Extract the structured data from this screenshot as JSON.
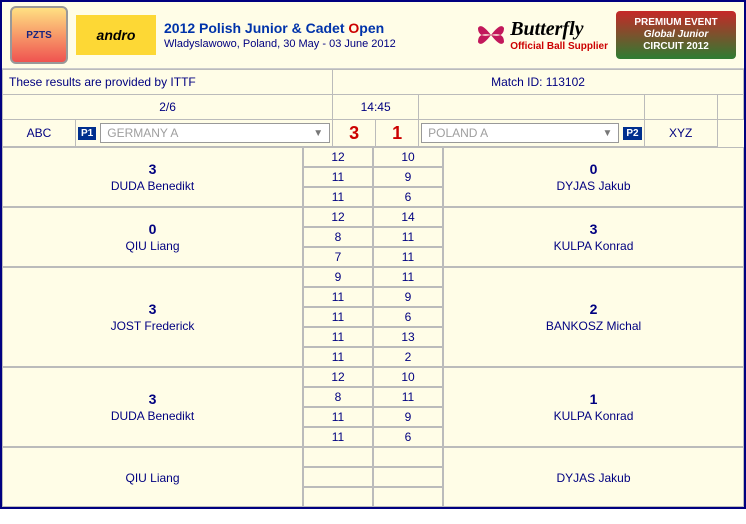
{
  "header": {
    "pzts_label": "PZTS",
    "andro_label": "andro",
    "event_title_pre": "2012 Polish Junior & Cadet ",
    "event_title_o": "O",
    "event_title_post": "pen",
    "event_subtitle": "Wladyslawowo, Poland, 30 May - 03 June 2012",
    "butterfly_name": "Butterfly",
    "butterfly_tag": "Official Ball Supplier",
    "gj_line1": "PREMIUM EVENT",
    "gj_line2": "Global Junior",
    "gj_line3": "CIRCUIT 2012"
  },
  "info": {
    "provided_by": "These results are provided by ITTF",
    "match_id": "Match ID: 113102",
    "round": "2/6",
    "time": "14:45"
  },
  "teams": {
    "abc": "ABC",
    "xyz": "XYZ",
    "p1_badge": "P1",
    "p2_badge": "P2",
    "home_name": "GERMANY A",
    "away_name": "POLAND A",
    "home_score": "3",
    "away_score": "1"
  },
  "matches": [
    {
      "home": {
        "score": "3",
        "name": "DUDA Benedikt"
      },
      "away": {
        "score": "0",
        "name": "DYJAS Jakub"
      },
      "games": [
        [
          "12",
          "10"
        ],
        [
          "11",
          "9"
        ],
        [
          "11",
          "6"
        ]
      ]
    },
    {
      "home": {
        "score": "0",
        "name": "QIU Liang"
      },
      "away": {
        "score": "3",
        "name": "KULPA Konrad"
      },
      "games": [
        [
          "12",
          "14"
        ],
        [
          "8",
          "11"
        ],
        [
          "7",
          "11"
        ]
      ]
    },
    {
      "home": {
        "score": "3",
        "name": "JOST Frederick"
      },
      "away": {
        "score": "2",
        "name": "BANKOSZ Michal"
      },
      "games": [
        [
          "9",
          "11"
        ],
        [
          "11",
          "9"
        ],
        [
          "11",
          "6"
        ],
        [
          "11",
          "13"
        ],
        [
          "11",
          "2"
        ]
      ]
    },
    {
      "home": {
        "score": "3",
        "name": "DUDA Benedikt"
      },
      "away": {
        "score": "1",
        "name": "KULPA Konrad"
      },
      "games": [
        [
          "12",
          "10"
        ],
        [
          "8",
          "11"
        ],
        [
          "11",
          "9"
        ],
        [
          "11",
          "6"
        ]
      ]
    },
    {
      "home": {
        "score": "",
        "name": "QIU Liang"
      },
      "away": {
        "score": "",
        "name": "DYJAS Jakub"
      },
      "games": [
        [
          "",
          ""
        ],
        [
          "",
          ""
        ],
        [
          "",
          ""
        ]
      ]
    }
  ],
  "colors": {
    "primary": "#000080",
    "accent_red": "#cc0000",
    "bg": "#fffde7",
    "border": "#bbbbbb"
  }
}
